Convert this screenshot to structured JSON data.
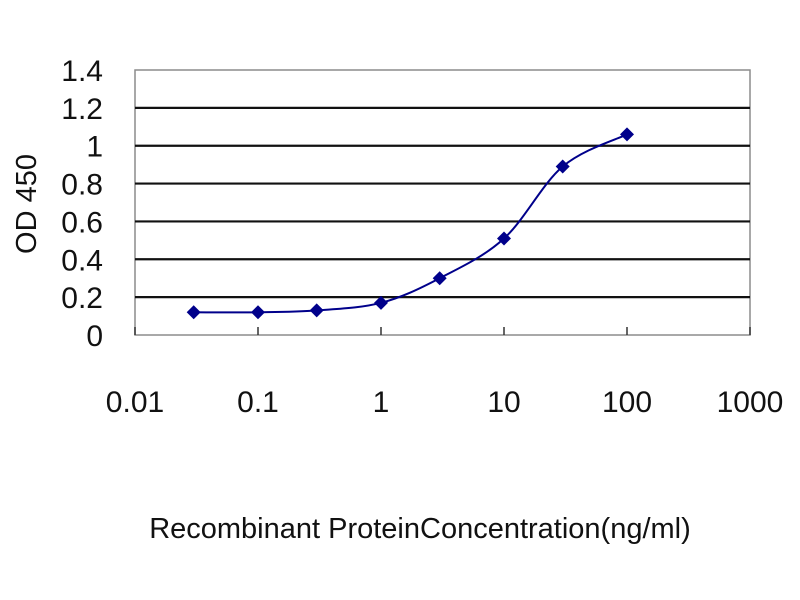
{
  "chart_data": {
    "type": "line",
    "xlabel": "Recombinant ProteinConcentration(ng/ml)",
    "ylabel": "OD 450",
    "xscale": "log",
    "xlim": [
      0.01,
      1000
    ],
    "ylim": [
      0,
      1.4
    ],
    "x_ticks": [
      0.01,
      0.1,
      1,
      10,
      100,
      1000
    ],
    "x_tick_labels": [
      "0.01",
      "0.1",
      "1",
      "10",
      "100",
      "1000"
    ],
    "y_ticks": [
      0,
      0.2,
      0.4,
      0.6,
      0.8,
      1,
      1.2,
      1.4
    ],
    "y_tick_labels": [
      "0",
      "0.2",
      "0.4",
      "0.6",
      "0.8",
      "1",
      "1.2",
      "1.4"
    ],
    "grid": "horizontal",
    "series": [
      {
        "color": "#00008b",
        "marker": "diamond",
        "x": [
          0.03,
          0.1,
          0.3,
          1,
          3,
          10,
          30,
          100
        ],
        "y": [
          0.12,
          0.12,
          0.13,
          0.17,
          0.3,
          0.51,
          0.89,
          1.06
        ]
      }
    ]
  }
}
